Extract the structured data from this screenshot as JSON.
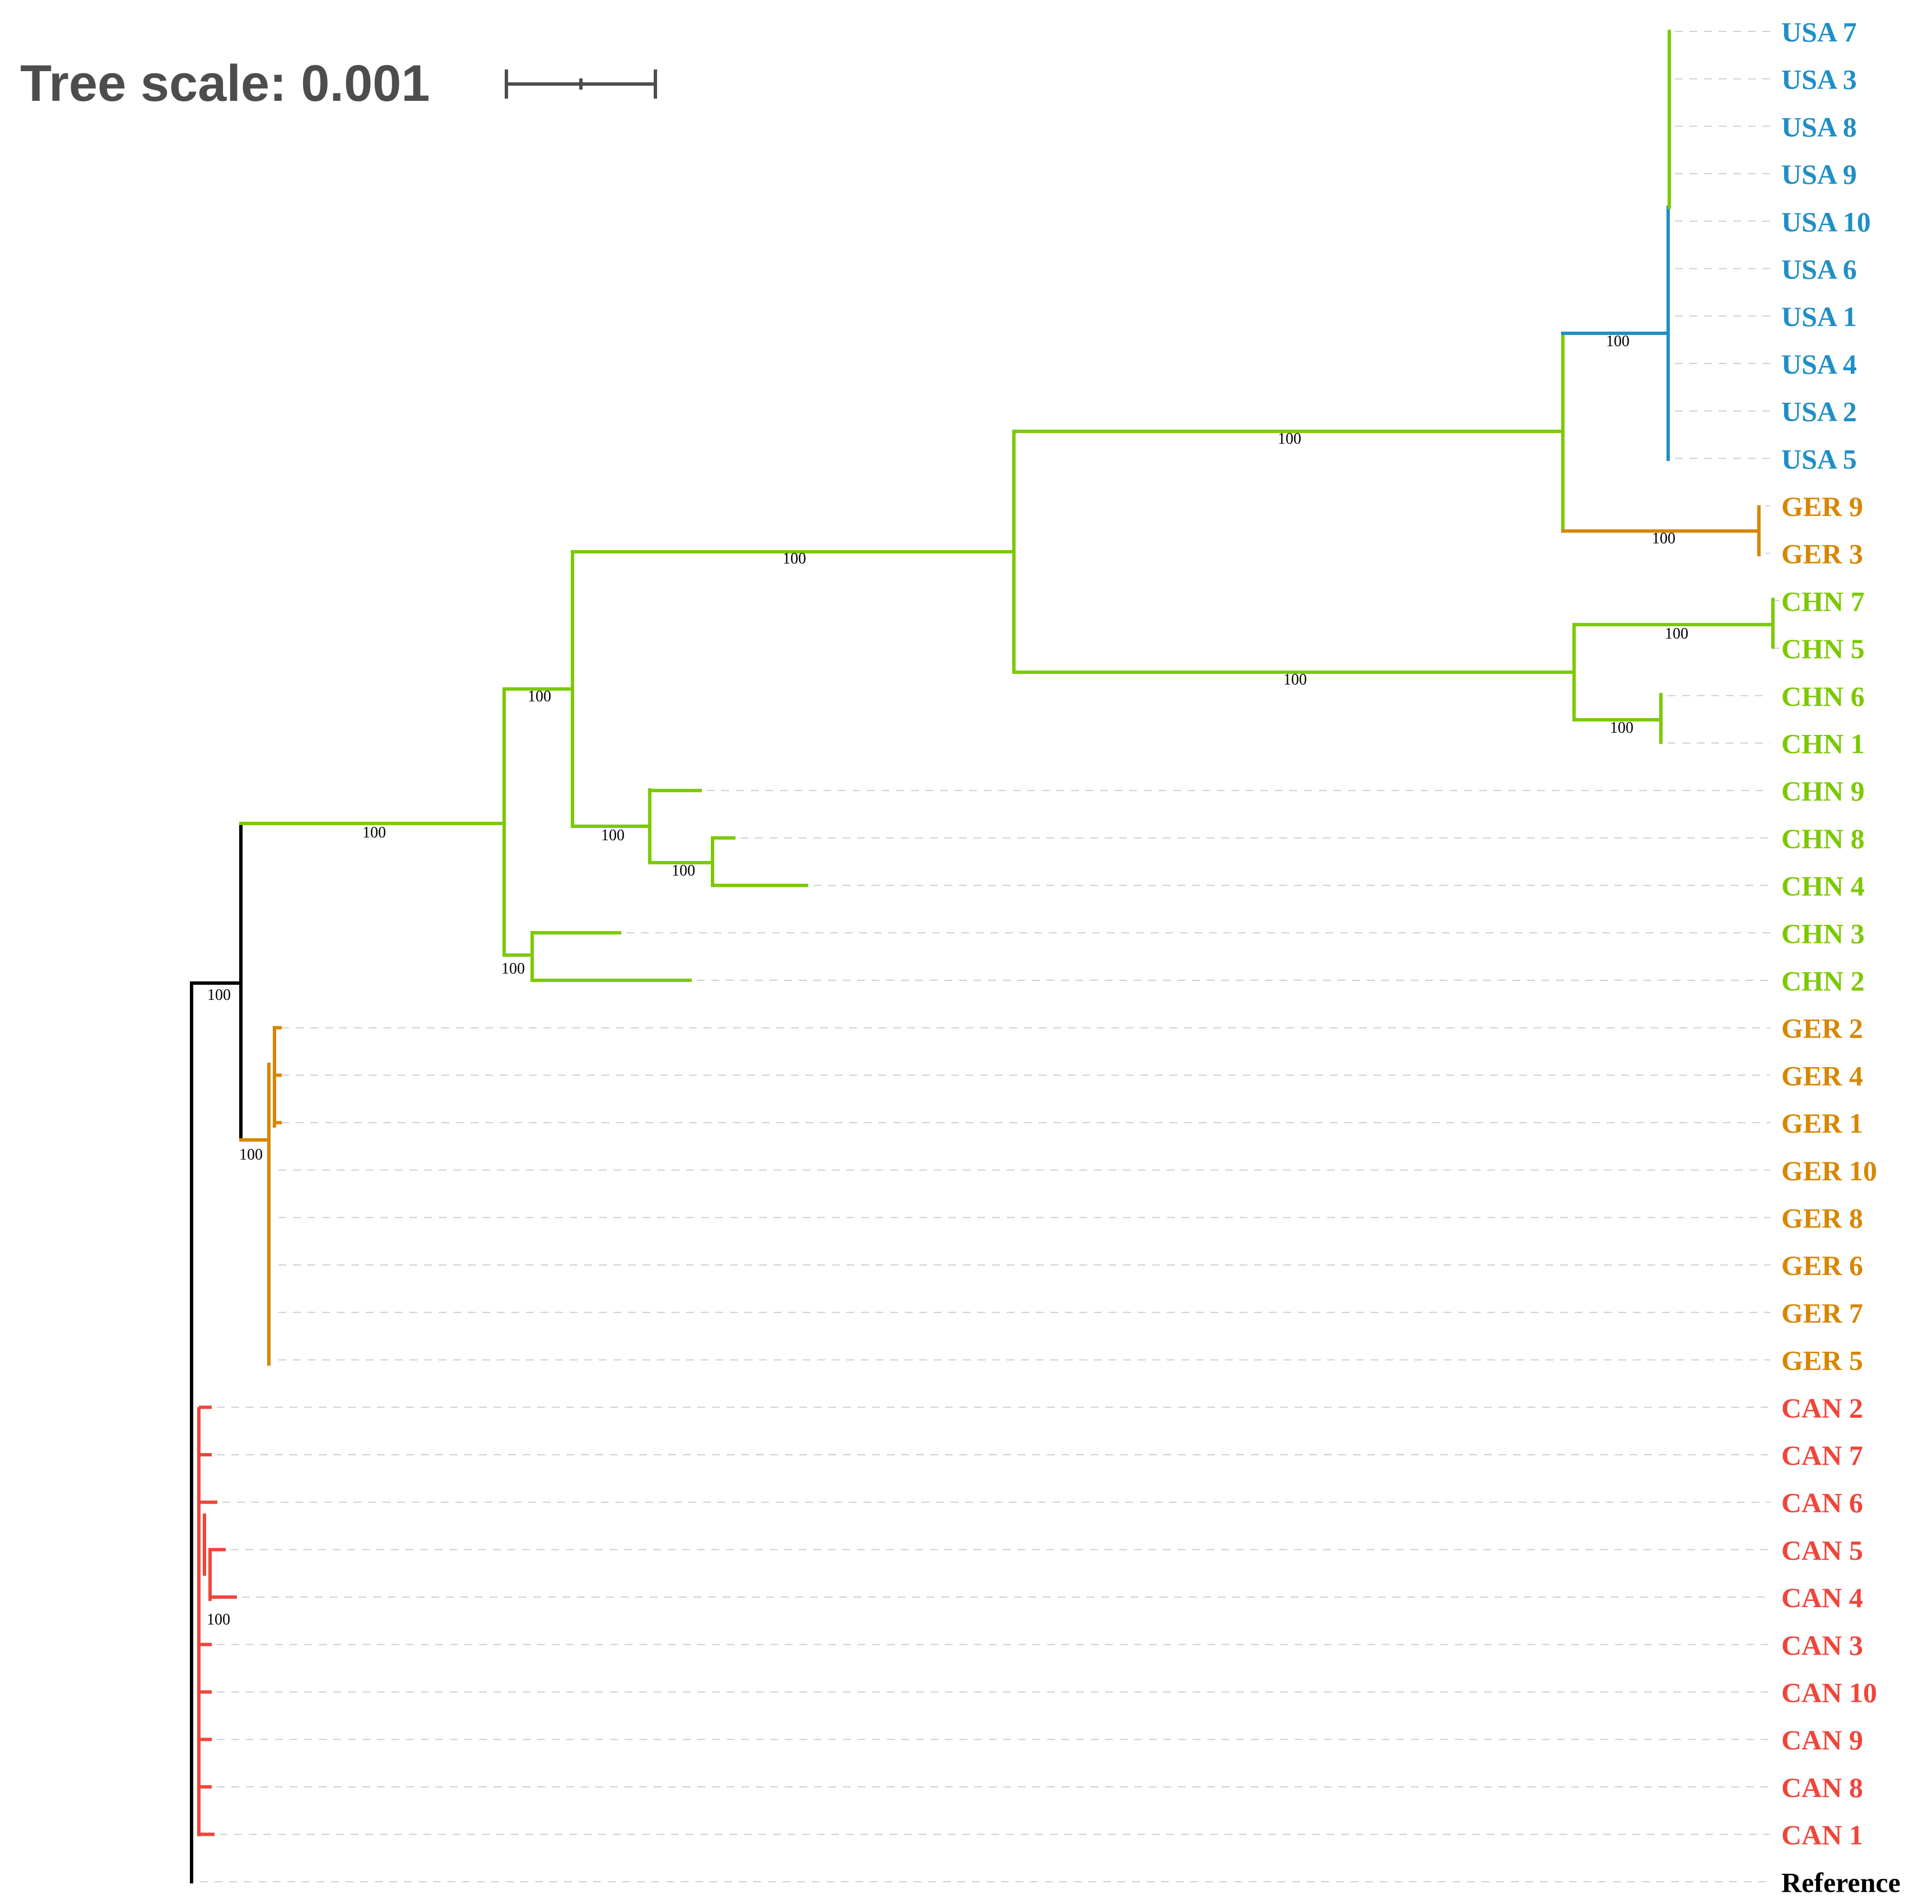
{
  "tree_scale": {
    "label": "Tree scale: 0.001"
  },
  "colors": {
    "USA": "#1f8fc5",
    "GER": "#d88600",
    "CHN": "#7cc900",
    "CAN": "#f0453a",
    "ROOT": "#000000",
    "GUIDE": "#cfcfcf"
  },
  "leaves": [
    {
      "label": "USA 7",
      "group": "USA"
    },
    {
      "label": "USA 3",
      "group": "USA"
    },
    {
      "label": "USA 8",
      "group": "USA"
    },
    {
      "label": "USA 9",
      "group": "USA"
    },
    {
      "label": "USA 10",
      "group": "USA"
    },
    {
      "label": "USA 6",
      "group": "USA"
    },
    {
      "label": "USA 1",
      "group": "USA"
    },
    {
      "label": "USA 4",
      "group": "USA"
    },
    {
      "label": "USA 2",
      "group": "USA"
    },
    {
      "label": "USA 5",
      "group": "USA"
    },
    {
      "label": "GER 9",
      "group": "GER"
    },
    {
      "label": "GER 3",
      "group": "GER"
    },
    {
      "label": "CHN 7",
      "group": "CHN"
    },
    {
      "label": "CHN 5",
      "group": "CHN"
    },
    {
      "label": "CHN 6",
      "group": "CHN"
    },
    {
      "label": "CHN 1",
      "group": "CHN"
    },
    {
      "label": "CHN 9",
      "group": "CHN"
    },
    {
      "label": "CHN 8",
      "group": "CHN"
    },
    {
      "label": "CHN 4",
      "group": "CHN"
    },
    {
      "label": "CHN 3",
      "group": "CHN"
    },
    {
      "label": "CHN 2",
      "group": "CHN"
    },
    {
      "label": "GER 2",
      "group": "GER"
    },
    {
      "label": "GER 4",
      "group": "GER"
    },
    {
      "label": "GER 1",
      "group": "GER"
    },
    {
      "label": "GER 10",
      "group": "GER"
    },
    {
      "label": "GER 8",
      "group": "GER"
    },
    {
      "label": "GER 6",
      "group": "GER"
    },
    {
      "label": "GER 7",
      "group": "GER"
    },
    {
      "label": "GER 5",
      "group": "GER"
    },
    {
      "label": "CAN 2",
      "group": "CAN"
    },
    {
      "label": "CAN 7",
      "group": "CAN"
    },
    {
      "label": "CAN 6",
      "group": "CAN"
    },
    {
      "label": "CAN 5",
      "group": "CAN"
    },
    {
      "label": "CAN 4",
      "group": "CAN"
    },
    {
      "label": "CAN 3",
      "group": "CAN"
    },
    {
      "label": "CAN 10",
      "group": "CAN"
    },
    {
      "label": "CAN 9",
      "group": "CAN"
    },
    {
      "label": "CAN 8",
      "group": "CAN"
    },
    {
      "label": "CAN 1",
      "group": "CAN"
    },
    {
      "label": "Reference",
      "group": "ROOT"
    }
  ],
  "support_values": [
    {
      "node": "usa-clade",
      "value": "100"
    },
    {
      "node": "usa-ger9-3-split",
      "value": "100"
    },
    {
      "node": "ger9-3-clade",
      "value": "100"
    },
    {
      "node": "chn7-5-clade",
      "value": "100"
    },
    {
      "node": "chn-upper-split",
      "value": "100"
    },
    {
      "node": "chn6-1-clade",
      "value": "100"
    },
    {
      "node": "upper-clade",
      "value": "100"
    },
    {
      "node": "chn-internal",
      "value": "100"
    },
    {
      "node": "chn9-8-4-clade",
      "value": "100"
    },
    {
      "node": "chn8-4-clade",
      "value": "100"
    },
    {
      "node": "chn-main",
      "value": "100"
    },
    {
      "node": "chn3-2-clade",
      "value": "100"
    },
    {
      "node": "non-can-clade",
      "value": "100"
    },
    {
      "node": "ger-clade",
      "value": "100"
    },
    {
      "node": "can-clade",
      "value": "100"
    }
  ]
}
